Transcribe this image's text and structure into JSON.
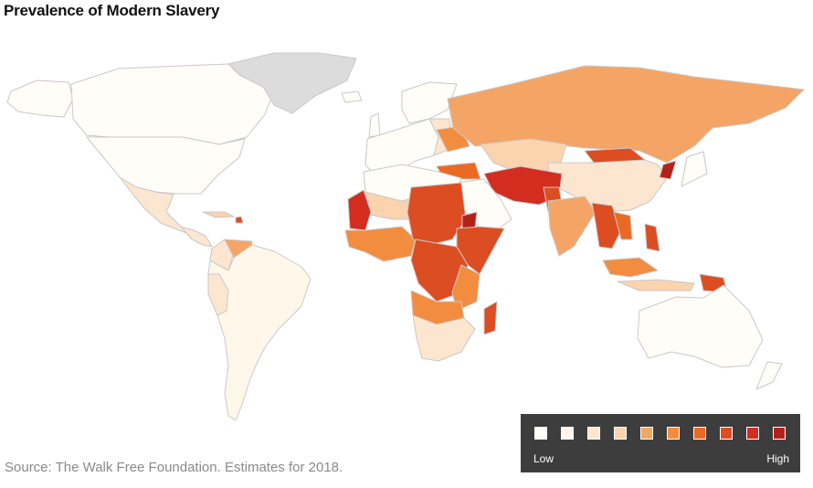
{
  "title": "Prevalence of Modern Slavery",
  "source": "Source: The Walk Free Foundation. Estimates for 2018.",
  "legend": {
    "low_label": "Low",
    "high_label": "High",
    "scale_colors": [
      "#fffdf8",
      "#fff7ea",
      "#fde6cf",
      "#fbd3ad",
      "#f4a566",
      "#f28d3f",
      "#ea6a24",
      "#dd4d22",
      "#d32d20",
      "#b42119"
    ]
  },
  "map_colors": {
    "no_data": "#dcdcdc",
    "border": "#c9c9c9",
    "ocean": "#ffffff"
  }
}
